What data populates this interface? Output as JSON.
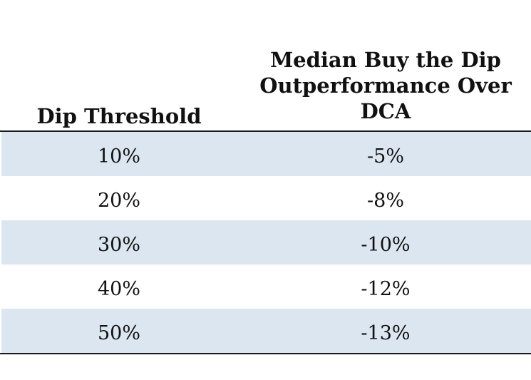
{
  "chart_data": {
    "type": "table",
    "columns": [
      "Dip Threshold",
      [
        "Median Buy the Dip",
        "Outperformance Over",
        "DCA"
      ]
    ],
    "rows": [
      {
        "threshold": "10%",
        "outperformance": "-5%"
      },
      {
        "threshold": "20%",
        "outperformance": "-8%"
      },
      {
        "threshold": "30%",
        "outperformance": "-10%"
      },
      {
        "threshold": "40%",
        "outperformance": "-12%"
      },
      {
        "threshold": "50%",
        "outperformance": "-13%"
      }
    ],
    "row_shading_color": "#dce6f0"
  }
}
